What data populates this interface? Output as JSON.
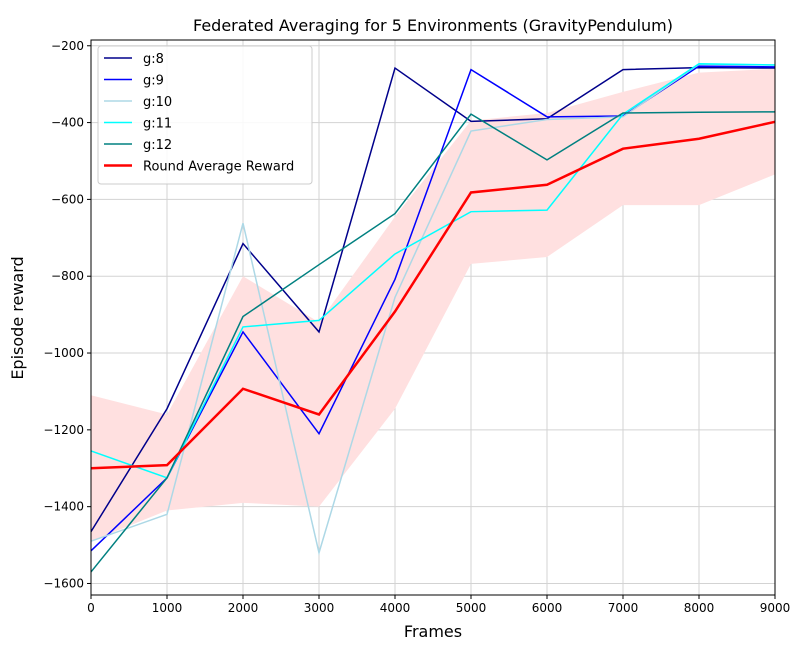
{
  "chart_data": {
    "type": "line",
    "title": "Federated Averaging for 5 Environments (GravityPendulum)",
    "xlabel": "Frames",
    "ylabel": "Episode reward",
    "xlim": [
      0,
      9000
    ],
    "ylim": [
      -1630,
      -185
    ],
    "xticks": [
      0,
      1000,
      2000,
      3000,
      4000,
      5000,
      6000,
      7000,
      8000,
      9000
    ],
    "yticks": [
      -1600,
      -1400,
      -1200,
      -1000,
      -800,
      -600,
      -400,
      -200
    ],
    "grid": true,
    "legend_position": "top-left",
    "x": [
      0,
      1000,
      2000,
      3000,
      4000,
      5000,
      6000,
      7000,
      8000,
      9000
    ],
    "series": [
      {
        "name": "g:8",
        "color": "#00008b",
        "width": 1.5,
        "values": [
          -1465,
          -1145,
          -715,
          -945,
          -258,
          -397,
          -390,
          -262,
          -257,
          -258
        ]
      },
      {
        "name": "g:9",
        "color": "#0000ff",
        "width": 1.5,
        "values": [
          -1515,
          -1325,
          -945,
          -1210,
          -808,
          -262,
          -385,
          -383,
          -253,
          -255
        ]
      },
      {
        "name": "g:10",
        "color": "#add8e6",
        "width": 1.5,
        "values": [
          -1490,
          -1420,
          -662,
          -1520,
          -855,
          -422,
          -392,
          -385,
          -248,
          -250
        ]
      },
      {
        "name": "g:11",
        "color": "#00ffff",
        "width": 1.5,
        "values": [
          -1255,
          -1325,
          -932,
          -915,
          -742,
          -632,
          -628,
          -378,
          -247,
          -250
        ]
      },
      {
        "name": "g:12",
        "color": "#008080",
        "width": 1.5,
        "values": [
          -1570,
          -1325,
          -905,
          -770,
          -637,
          -378,
          -497,
          -375,
          -373,
          -372
        ]
      },
      {
        "name": "Round Average Reward",
        "color": "#ff0000",
        "width": 2.5,
        "values": [
          -1300,
          -1292,
          -1093,
          -1160,
          -892,
          -582,
          -562,
          -468,
          -442,
          -398
        ]
      }
    ],
    "band": {
      "color": "#ffe0e0",
      "upper": [
        -1110,
        -1160,
        -800,
        -920,
        -645,
        -395,
        -375,
        -320,
        -270,
        -260
      ],
      "lower": [
        -1490,
        -1410,
        -1390,
        -1400,
        -1145,
        -768,
        -750,
        -615,
        -615,
        -535
      ]
    }
  }
}
